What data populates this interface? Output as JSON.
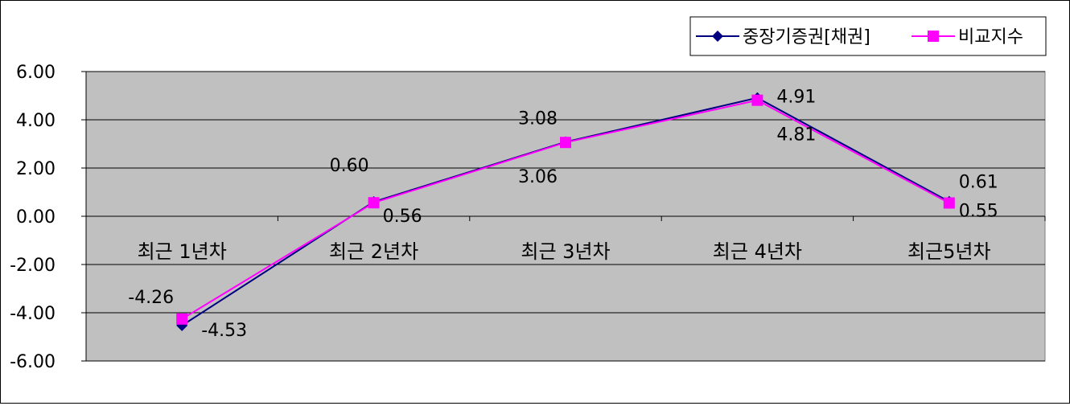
{
  "chart_data": {
    "type": "line",
    "categories": [
      "최근 1년차",
      "최근 2년차",
      "최근 3년차",
      "최근 4년차",
      "최근5년차"
    ],
    "series": [
      {
        "name": "중장기증권[채권]",
        "values": [
          -4.53,
          0.6,
          3.08,
          4.91,
          0.61
        ],
        "labels": [
          "-4.53",
          "0.60",
          "3.08",
          "4.91",
          "0.61"
        ],
        "color": "#000080",
        "marker": "diamond"
      },
      {
        "name": "비교지수",
        "values": [
          -4.26,
          0.56,
          3.06,
          4.81,
          0.55
        ],
        "labels": [
          "-4.26",
          "0.56",
          "3.06",
          "4.81",
          "0.55"
        ],
        "color": "#FF00FF",
        "marker": "square"
      }
    ],
    "ylim": [
      -6,
      6
    ],
    "yticks": [
      6,
      4,
      2,
      0,
      -2,
      -4,
      -6
    ],
    "ytick_labels": [
      "6.00",
      "4.00",
      "2.00",
      "0.00",
      "-2.00",
      "-4.00",
      "-6.00"
    ],
    "grid": true,
    "plot_background": "#C0C0C0",
    "legend_position": "top-right"
  }
}
